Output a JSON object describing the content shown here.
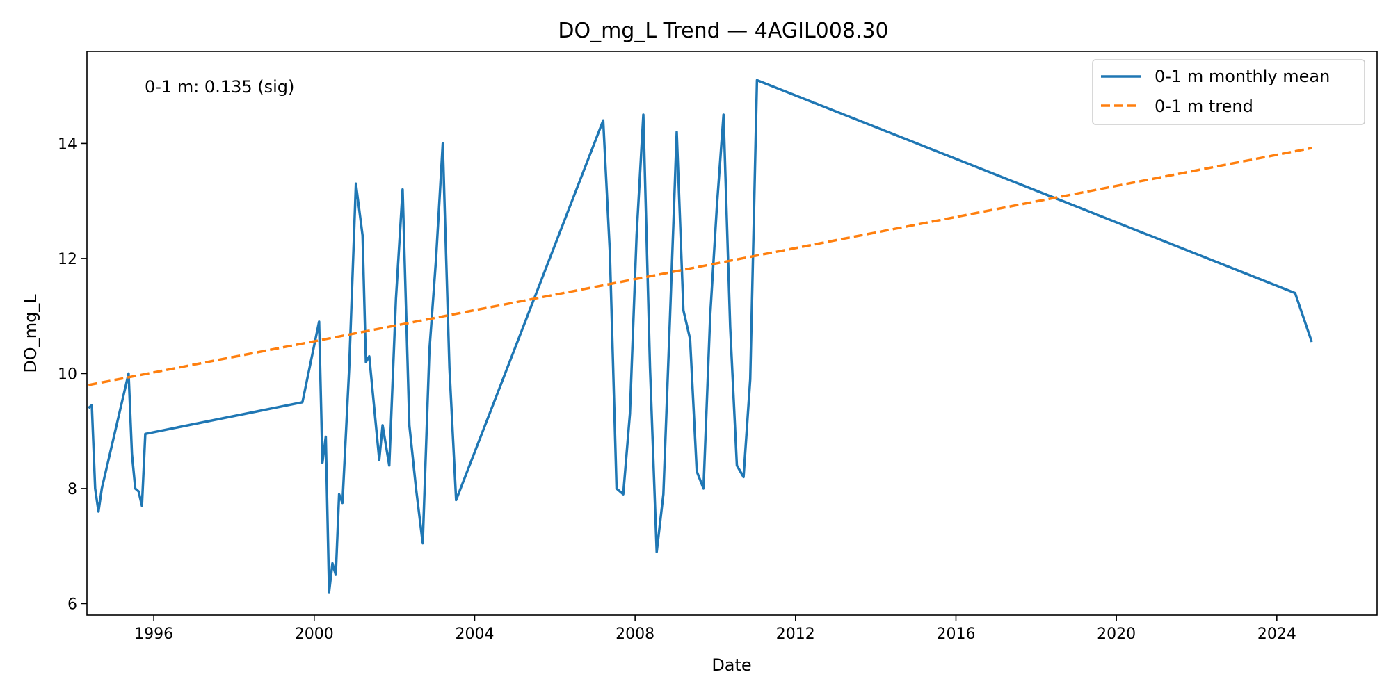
{
  "chart_data": {
    "type": "line",
    "title": "DO_mg_L Trend — 4AGIL008.30",
    "xlabel": "Date",
    "ylabel": "DO_mg_L",
    "xlim": [
      "1994-05-01",
      "2026-07-01"
    ],
    "ylim": [
      5.8,
      15.6
    ],
    "x_ticks": [
      "1996",
      "2000",
      "2004",
      "2008",
      "2012",
      "2016",
      "2020",
      "2024"
    ],
    "y_ticks": [
      "6",
      "8",
      "10",
      "12",
      "14"
    ],
    "grid": false,
    "legend_position": "top-right",
    "annotation": "0-1 m: 0.135 (sig)",
    "colors": {
      "mean": "#1f77b4",
      "trend": "#ff7f0e"
    },
    "series": [
      {
        "name": "0-1 m monthly mean",
        "style": "solid",
        "color": "#1f77b4",
        "x": [
          "1994-05-15",
          "1994-06-15",
          "1994-07-15",
          "1994-08-15",
          "1994-09-15",
          "1995-05-15",
          "1995-06-15",
          "1995-07-15",
          "1995-08-15",
          "1995-09-15",
          "1995-10-15",
          "1999-09-15",
          "2000-02-15",
          "2000-03-15",
          "2000-04-15",
          "2000-05-15",
          "2000-06-15",
          "2000-07-15",
          "2000-08-15",
          "2000-09-15",
          "2000-11-15",
          "2001-01-15",
          "2001-03-15",
          "2001-04-15",
          "2001-05-15",
          "2001-08-15",
          "2001-09-15",
          "2001-11-15",
          "2002-01-15",
          "2002-03-15",
          "2002-05-15",
          "2002-07-15",
          "2002-09-15",
          "2002-11-15",
          "2003-01-15",
          "2003-03-15",
          "2003-05-15",
          "2003-07-15",
          "2007-03-15",
          "2007-05-15",
          "2007-07-15",
          "2007-09-15",
          "2007-11-15",
          "2008-01-15",
          "2008-03-15",
          "2008-05-15",
          "2008-07-15",
          "2008-09-15",
          "2008-11-15",
          "2009-01-15",
          "2009-03-15",
          "2009-05-15",
          "2009-07-15",
          "2009-09-15",
          "2009-11-15",
          "2010-01-15",
          "2010-03-15",
          "2010-05-15",
          "2010-07-15",
          "2010-09-15",
          "2010-11-15",
          "2011-01-15",
          "2024-06-15",
          "2024-11-15"
        ],
        "values": [
          9.4,
          9.45,
          8.0,
          7.6,
          8.0,
          10.0,
          8.6,
          8.0,
          7.95,
          7.7,
          8.95,
          9.5,
          10.9,
          8.45,
          8.9,
          6.2,
          6.7,
          6.5,
          7.9,
          7.75,
          10.1,
          13.3,
          12.4,
          10.2,
          10.3,
          8.5,
          9.1,
          8.4,
          11.3,
          13.2,
          9.1,
          8.0,
          7.05,
          10.4,
          12.0,
          14.0,
          10.1,
          7.8,
          14.4,
          12.1,
          8.0,
          7.9,
          9.3,
          12.4,
          14.5,
          10.1,
          6.9,
          7.9,
          11.0,
          14.2,
          11.1,
          10.6,
          8.3,
          8.0,
          11.0,
          12.9,
          14.5,
          10.8,
          8.4,
          8.2,
          9.9,
          15.1,
          11.4,
          10.55
        ]
      },
      {
        "name": "0-1 m trend",
        "style": "dashed",
        "color": "#ff7f0e",
        "x": [
          "1994-05-15",
          "2024-11-15"
        ],
        "values": [
          9.8,
          13.92
        ]
      }
    ]
  }
}
